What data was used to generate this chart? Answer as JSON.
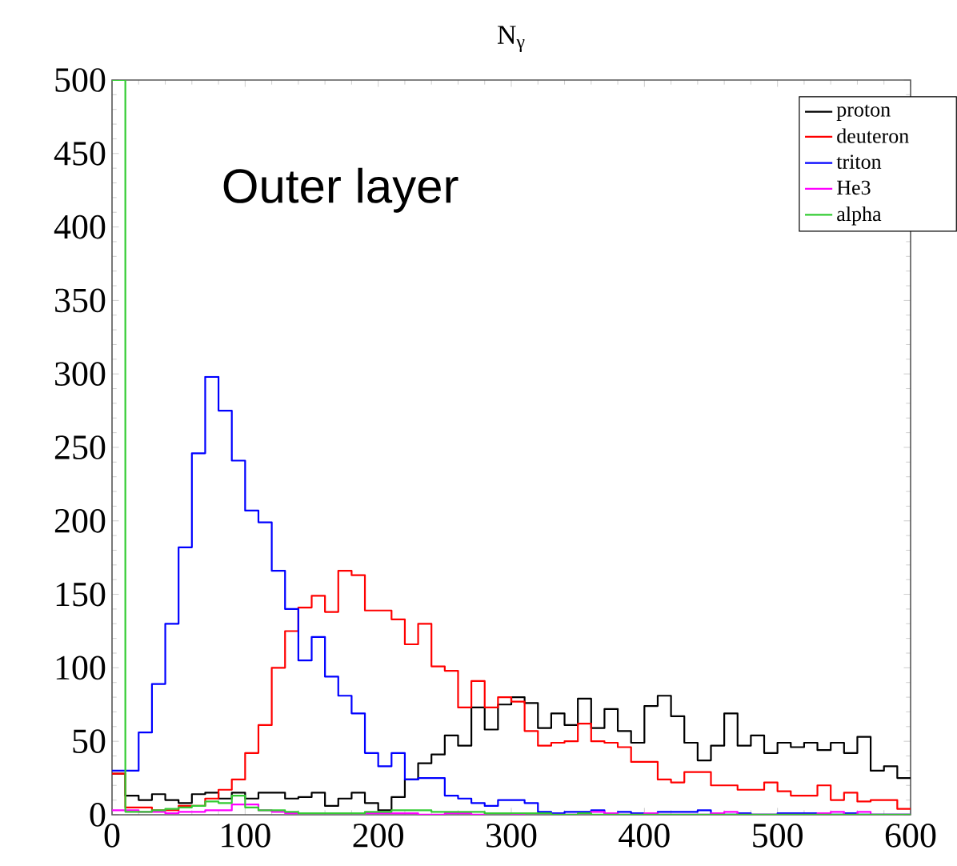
{
  "chart_data": {
    "type": "histogram",
    "title": "N$_{γ}$",
    "annotations": [
      "Outer layer"
    ],
    "bins": [
      0,
      10,
      20,
      30,
      40,
      50,
      60,
      70,
      80,
      90,
      100,
      110,
      120,
      130,
      140,
      150,
      160,
      170,
      180,
      190,
      200,
      210,
      220,
      230,
      240,
      250,
      260,
      270,
      280,
      290,
      300,
      310,
      320,
      330,
      340,
      350,
      360,
      370,
      380,
      390,
      400,
      410,
      420,
      430,
      440,
      450,
      460,
      470,
      480,
      490,
      500,
      510,
      520,
      530,
      540,
      550,
      560,
      570,
      580,
      590,
      600
    ],
    "series": [
      {
        "name": "proton",
        "color": "#000000",
        "values": [
          28,
          13,
          10,
          14,
          10,
          8,
          14,
          15,
          11,
          15,
          11,
          15,
          15,
          11,
          12,
          15,
          6,
          11,
          15,
          8,
          3,
          12,
          24,
          35,
          41,
          54,
          47,
          73,
          58,
          75,
          80,
          76,
          59,
          69,
          61,
          79,
          59,
          72,
          57,
          49,
          74,
          81,
          67,
          49,
          37,
          47,
          69,
          47,
          54,
          42,
          49,
          46,
          49,
          44,
          49,
          42,
          53,
          30,
          33,
          25
        ]
      },
      {
        "name": "deuteron",
        "color": "#ff0000",
        "values": [
          28,
          5,
          5,
          3,
          3,
          6,
          6,
          11,
          17,
          24,
          42,
          61,
          100,
          125,
          141,
          149,
          138,
          166,
          163,
          139,
          139,
          133,
          116,
          130,
          101,
          98,
          73,
          91,
          73,
          80,
          77,
          57,
          47,
          49,
          50,
          62,
          50,
          49,
          46,
          36,
          36,
          24,
          22,
          29,
          29,
          20,
          20,
          17,
          17,
          22,
          16,
          13,
          13,
          20,
          10,
          15,
          9,
          10,
          10,
          4
        ]
      },
      {
        "name": "triton",
        "color": "#0000ff",
        "values": [
          30,
          30,
          56,
          89,
          130,
          182,
          246,
          298,
          275,
          241,
          207,
          199,
          166,
          140,
          105,
          121,
          94,
          81,
          69,
          42,
          33,
          42,
          24,
          25,
          25,
          13,
          11,
          8,
          6,
          10,
          10,
          8,
          2,
          1,
          2,
          2,
          3,
          1,
          2,
          1,
          1,
          2,
          2,
          2,
          3,
          0,
          0,
          1,
          0,
          0,
          1,
          1,
          1,
          0,
          0,
          1,
          0,
          0,
          0,
          0
        ]
      },
      {
        "name": "He3",
        "color": "#ff00ff",
        "values": [
          3,
          3,
          2,
          2,
          1,
          2,
          2,
          3,
          3,
          7,
          7,
          3,
          2,
          1,
          1,
          1,
          1,
          1,
          1,
          1,
          1,
          1,
          1,
          0,
          0,
          1,
          1,
          0,
          1,
          1,
          0,
          1,
          1,
          0,
          0,
          1,
          2,
          1,
          0,
          0,
          1,
          0,
          0,
          0,
          0,
          1,
          2,
          0,
          0,
          0,
          0,
          0,
          0,
          1,
          2,
          0,
          2,
          0,
          0,
          0
        ]
      },
      {
        "name": "alpha",
        "color": "#33cc33",
        "values": [
          500,
          2,
          2,
          3,
          4,
          5,
          6,
          9,
          8,
          13,
          5,
          3,
          3,
          2,
          1,
          1,
          1,
          1,
          1,
          2,
          2,
          3,
          3,
          3,
          2,
          2,
          2,
          2,
          1,
          1,
          1,
          1,
          1,
          0,
          0,
          1,
          0,
          0,
          0,
          0,
          0,
          0,
          0,
          0,
          0,
          0,
          0,
          0,
          0,
          0,
          0,
          0,
          0,
          0,
          0,
          0,
          0,
          0,
          0,
          0
        ]
      }
    ],
    "xlim": [
      0,
      600
    ],
    "xticks": [
      0,
      100,
      200,
      300,
      400,
      500,
      600
    ],
    "ylim": [
      0,
      500
    ],
    "yticks": [
      0,
      50,
      100,
      150,
      200,
      250,
      300,
      350,
      400,
      450,
      500
    ],
    "legend": "top right"
  }
}
